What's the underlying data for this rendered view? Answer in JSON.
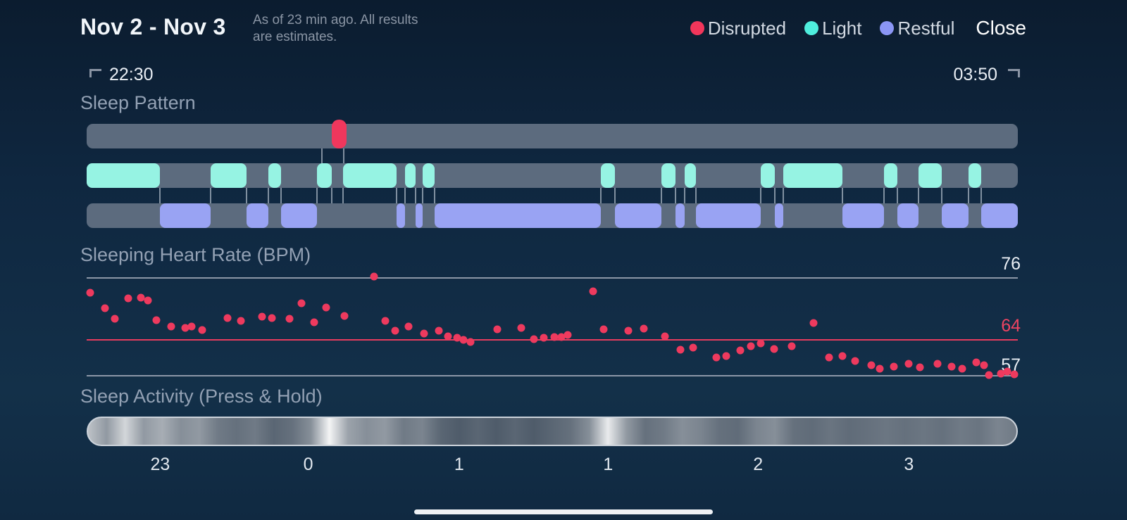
{
  "header": {
    "title": "Nov 2 - Nov 3",
    "subtitle_line1": "As of 23 min ago. All results",
    "subtitle_line2": "are estimates.",
    "close_label": "Close",
    "legend": [
      {
        "label": "Disrupted",
        "color": "#f2365b"
      },
      {
        "label": "Light",
        "color": "#4feedd"
      },
      {
        "label": "Restful",
        "color": "#8b96f5"
      }
    ]
  },
  "time_range": {
    "start": "22:30",
    "end": "03:50"
  },
  "sections": {
    "pattern_title": "Sleep Pattern",
    "heart_rate_title": "Sleeping Heart Rate (BPM)",
    "activity_title": "Sleep Activity (Press & Hold)"
  },
  "sleep_pattern": {
    "track_bg": "#5c6b7e",
    "disrupted": {
      "color": "#f0375d",
      "segments": [
        [
          26.3,
          27.9
        ]
      ]
    },
    "light": {
      "color": "#96f3e3",
      "segments": [
        [
          0,
          7.9
        ],
        [
          13.3,
          17.2
        ],
        [
          19.5,
          20.9
        ],
        [
          24.7,
          26.3
        ],
        [
          27.5,
          33.3
        ],
        [
          34.2,
          35.3
        ],
        [
          36.1,
          37.4
        ],
        [
          55.2,
          56.7
        ],
        [
          61.7,
          63.2
        ],
        [
          64.2,
          65.4
        ],
        [
          72.4,
          73.9
        ],
        [
          74.8,
          81.2
        ],
        [
          85.6,
          87.1
        ],
        [
          89.3,
          91.8
        ],
        [
          94.7,
          96.1
        ]
      ]
    },
    "restful": {
      "color": "#99a3f3",
      "segments": [
        [
          7.9,
          13.3
        ],
        [
          17.2,
          19.5
        ],
        [
          20.9,
          24.7
        ],
        [
          33.3,
          34.2
        ],
        [
          35.3,
          36.1
        ],
        [
          37.4,
          55.2
        ],
        [
          56.7,
          61.7
        ],
        [
          63.2,
          64.2
        ],
        [
          65.4,
          72.4
        ],
        [
          73.9,
          74.8
        ],
        [
          81.2,
          85.6
        ],
        [
          87.1,
          89.3
        ],
        [
          91.8,
          94.7
        ],
        [
          96.1,
          100
        ]
      ]
    },
    "connectors_gap1": [
      25.3,
      27.6
    ],
    "connectors_gap2": [
      7.9,
      13.3,
      17.2,
      19.5,
      20.9,
      24.7,
      26.3,
      27.5,
      33.3,
      34.2,
      35.3,
      36.1,
      37.4,
      55.2,
      56.7,
      61.7,
      63.2,
      64.2,
      65.4,
      72.4,
      73.9,
      74.8,
      81.2,
      85.6,
      87.1,
      89.3,
      91.8,
      94.7,
      96.1
    ]
  },
  "heart_rate": {
    "chart_type": "scatter",
    "y_max": 76,
    "y_min": 57,
    "dot_color": "#ee3a5e",
    "gridlines": [
      {
        "label": "76",
        "value": 76,
        "color": "#8c97a7",
        "thickness": 1.5,
        "label_color": "#e9eef4",
        "label_offset": -33
      },
      {
        "label": "64",
        "value": 64,
        "color": "#e63c5e",
        "thickness": 2,
        "label_color": "#ef4462",
        "label_offset": -33
      },
      {
        "label": "57",
        "value": 57,
        "color": "#8c97a7",
        "thickness": 1.5,
        "label_color": "#e9eef4",
        "label_offset": -28
      }
    ],
    "points": [
      [
        0.4,
        73.0
      ],
      [
        2.0,
        70.0
      ],
      [
        3.0,
        67.9
      ],
      [
        4.5,
        71.9
      ],
      [
        5.8,
        72.0
      ],
      [
        6.6,
        71.5
      ],
      [
        7.5,
        67.7
      ],
      [
        9.1,
        66.4
      ],
      [
        10.6,
        66.2
      ],
      [
        11.3,
        66.4
      ],
      [
        12.4,
        65.7
      ],
      [
        15.1,
        68.1
      ],
      [
        16.6,
        67.5
      ],
      [
        18.8,
        68.3
      ],
      [
        19.9,
        68.1
      ],
      [
        21.8,
        67.9
      ],
      [
        23.1,
        70.9
      ],
      [
        24.4,
        67.2
      ],
      [
        25.7,
        70.1
      ],
      [
        27.7,
        68.5
      ],
      [
        30.9,
        76.1
      ],
      [
        32.1,
        67.5
      ],
      [
        33.1,
        65.6
      ],
      [
        34.6,
        66.4
      ],
      [
        36.2,
        65.1
      ],
      [
        37.8,
        65.6
      ],
      [
        38.8,
        64.5
      ],
      [
        39.8,
        64.2
      ],
      [
        40.5,
        63.8
      ],
      [
        41.2,
        63.4
      ],
      [
        44.1,
        65.9
      ],
      [
        46.7,
        66.2
      ],
      [
        48.0,
        64.0
      ],
      [
        49.1,
        64.2
      ],
      [
        50.2,
        64.4
      ],
      [
        51.0,
        64.4
      ],
      [
        51.7,
        64.8
      ],
      [
        54.4,
        73.3
      ],
      [
        55.5,
        65.9
      ],
      [
        58.2,
        65.6
      ],
      [
        59.8,
        66.0
      ],
      [
        62.1,
        64.5
      ],
      [
        63.8,
        61.9
      ],
      [
        65.1,
        62.3
      ],
      [
        67.6,
        60.4
      ],
      [
        68.7,
        60.7
      ],
      [
        70.2,
        61.8
      ],
      [
        71.3,
        62.6
      ],
      [
        72.4,
        63.2
      ],
      [
        73.8,
        62.1
      ],
      [
        75.7,
        62.6
      ],
      [
        78.1,
        67.1
      ],
      [
        79.7,
        60.4
      ],
      [
        81.2,
        60.7
      ],
      [
        82.5,
        59.7
      ],
      [
        84.3,
        58.9
      ],
      [
        85.2,
        58.2
      ],
      [
        86.7,
        58.6
      ],
      [
        88.3,
        59.2
      ],
      [
        89.5,
        58.5
      ],
      [
        91.4,
        59.2
      ],
      [
        92.9,
        58.6
      ],
      [
        94.0,
        58.2
      ],
      [
        95.5,
        59.5
      ],
      [
        96.4,
        58.9
      ],
      [
        96.9,
        57.0
      ],
      [
        98.2,
        57.3
      ],
      [
        98.9,
        57.7
      ],
      [
        99.6,
        57.1
      ]
    ]
  },
  "activity": {
    "base_color": "#233345",
    "intensity": [
      0.7,
      0.5,
      0.8,
      0.5,
      0.6,
      0.45,
      0.5,
      0.35,
      0.3,
      0.35,
      0.25,
      0.3,
      0.45,
      0.95,
      0.55,
      0.45,
      0.5,
      0.35,
      0.4,
      0.25,
      0.2,
      0.25,
      0.2,
      0.25,
      0.2,
      0.25,
      0.3,
      0.45,
      0.9,
      0.5,
      0.3,
      0.35,
      0.45,
      0.4,
      0.3,
      0.28,
      0.4,
      0.45,
      0.3,
      0.28,
      0.32,
      0.28,
      0.3,
      0.33,
      0.3,
      0.33,
      0.3,
      0.35,
      0.32,
      0.4,
      0.35
    ],
    "hours": [
      {
        "label": "23",
        "x": 7.9
      },
      {
        "label": "0",
        "x": 23.8
      },
      {
        "label": "1",
        "x": 40.0
      },
      {
        "label": "1",
        "x": 56.0
      },
      {
        "label": "2",
        "x": 72.1
      },
      {
        "label": "3",
        "x": 88.3
      }
    ]
  }
}
